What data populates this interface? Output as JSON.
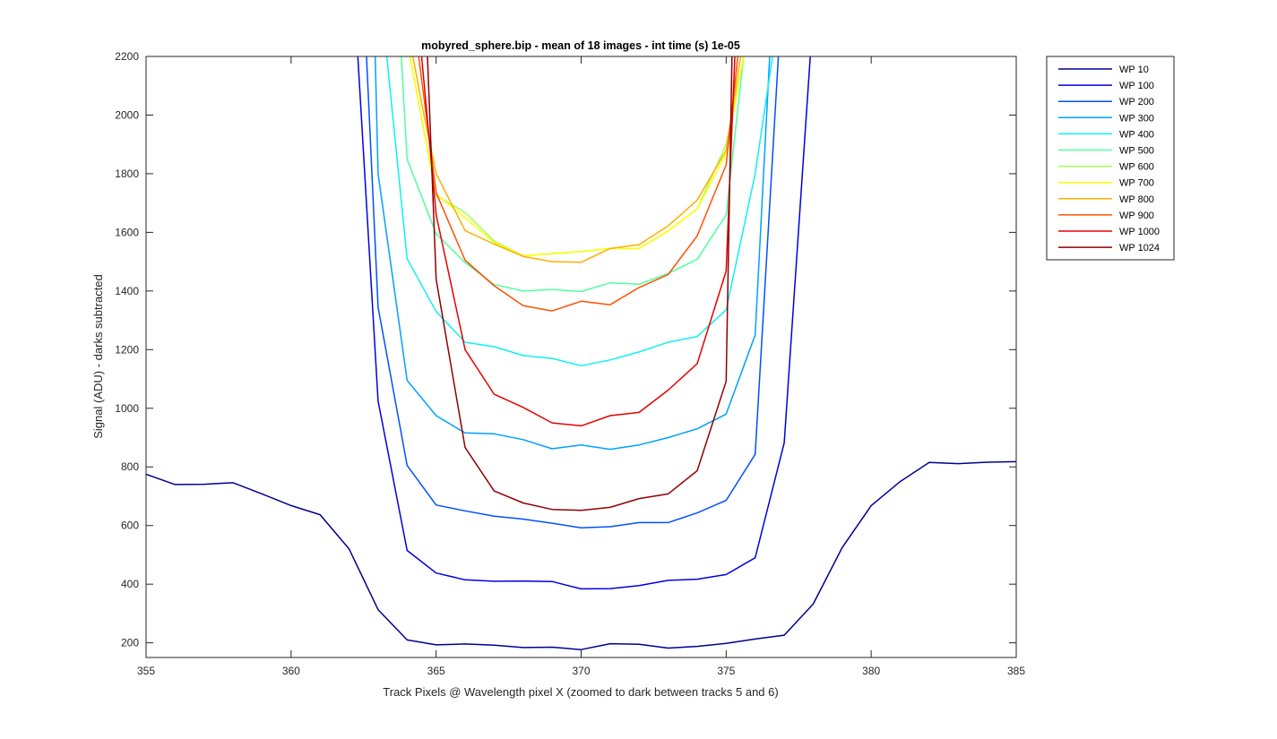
{
  "chart_data": {
    "type": "line",
    "title": "mobyred_sphere.bip - mean of 18 images - int time (s) 1e-05",
    "xlabel": "Track Pixels @ Wavelength pixel X  (zoomed to dark between tracks 5 and 6)",
    "ylabel": "Signal (ADU) - darks subtracted",
    "xlim": [
      355,
      385
    ],
    "ylim": [
      150,
      2200
    ],
    "xticks": [
      355,
      360,
      365,
      370,
      375,
      380,
      385
    ],
    "yticks": [
      200,
      400,
      600,
      800,
      1000,
      1200,
      1400,
      1600,
      1800,
      2000,
      2200
    ],
    "grid": false,
    "legend_position": "outside-top-right",
    "series": [
      {
        "name": "WP 10",
        "color": "#00008f",
        "x": [
          355,
          356,
          357,
          358,
          359,
          360,
          361,
          362,
          363,
          364,
          365,
          366,
          367,
          368,
          369,
          370,
          371,
          372,
          373,
          374,
          375,
          376,
          377,
          378,
          379,
          380,
          381,
          382,
          383,
          384,
          385
        ],
        "y": [
          775,
          740,
          741,
          746,
          708,
          668,
          637,
          520,
          313,
          210,
          193,
          196,
          192,
          184,
          185,
          177,
          197,
          195,
          182,
          188,
          198,
          213,
          226,
          332,
          525,
          668,
          750,
          815,
          811,
          816,
          818
        ]
      },
      {
        "name": "WP 100",
        "color": "#0000df",
        "x": [
          362.3,
          363,
          364,
          365,
          366,
          367,
          368,
          369,
          370,
          371,
          372,
          373,
          374,
          375,
          376,
          377,
          377.9
        ],
        "y": [
          2200,
          1025,
          515,
          438,
          415,
          410,
          411,
          409,
          384,
          385,
          395,
          413,
          417,
          433,
          490,
          882,
          2200
        ]
      },
      {
        "name": "WP 200",
        "color": "#0050ff",
        "x": [
          362.6,
          363,
          364,
          365,
          366,
          367,
          368,
          369,
          370,
          371,
          372,
          373,
          374,
          375,
          376,
          376.8
        ],
        "y": [
          2200,
          1345,
          805,
          670,
          650,
          632,
          622,
          608,
          592,
          596,
          610,
          610,
          643,
          686,
          843,
          2200
        ]
      },
      {
        "name": "WP 300",
        "color": "#00a0ff",
        "x": [
          362.9,
          363,
          364,
          365,
          366,
          367,
          368,
          369,
          370,
          371,
          372,
          373,
          374,
          375,
          376,
          376.5
        ],
        "y": [
          2200,
          1800,
          1095,
          975,
          916,
          913,
          893,
          862,
          875,
          860,
          875,
          900,
          930,
          980,
          1250,
          2200
        ]
      },
      {
        "name": "WP 400",
        "color": "#0ff0f0",
        "x": [
          363.3,
          364,
          365,
          366,
          367,
          368,
          369,
          370,
          371,
          372,
          373,
          374,
          375,
          376,
          376.6
        ],
        "y": [
          2200,
          1510,
          1330,
          1225,
          1210,
          1180,
          1170,
          1145,
          1165,
          1192,
          1225,
          1245,
          1335,
          1800,
          2200
        ]
      },
      {
        "name": "WP 500",
        "color": "#50ff9f",
        "x": [
          363.8,
          364,
          365,
          366,
          367,
          368,
          369,
          370,
          371,
          372,
          373,
          374,
          375,
          375.6
        ],
        "y": [
          2200,
          1850,
          1595,
          1497,
          1422,
          1400,
          1405,
          1398,
          1428,
          1423,
          1460,
          1508,
          1660,
          2200
        ]
      },
      {
        "name": "WP 600",
        "color": "#a0ff50",
        "x": [
          364.1,
          365,
          366,
          367,
          368,
          369,
          370,
          371,
          372,
          373,
          374,
          375,
          375.6
        ],
        "y": [
          2200,
          1725,
          1668,
          1570,
          1520,
          1527,
          1535,
          1545,
          1545,
          1605,
          1680,
          1900,
          2200
        ]
      },
      {
        "name": "WP 700",
        "color": "#ffff00",
        "x": [
          364.1,
          365,
          366,
          367,
          368,
          369,
          370,
          371,
          372,
          373,
          374,
          375,
          375.6
        ],
        "y": [
          2200,
          1730,
          1650,
          1565,
          1520,
          1528,
          1535,
          1545,
          1545,
          1605,
          1680,
          1870,
          2200
        ]
      },
      {
        "name": "WP 800",
        "color": "#ffae00",
        "x": [
          364.2,
          364.5,
          365,
          366,
          367,
          368,
          369,
          370,
          371,
          372,
          373,
          374,
          375,
          375.5
        ],
        "y": [
          2200,
          2040,
          1800,
          1606,
          1560,
          1518,
          1500,
          1498,
          1545,
          1558,
          1622,
          1710,
          1880,
          2200
        ]
      },
      {
        "name": "WP 900",
        "color": "#ff5000",
        "x": [
          364.4,
          365,
          366,
          367,
          368,
          369,
          370,
          371,
          372,
          373,
          374,
          375,
          375.4
        ],
        "y": [
          2200,
          1735,
          1505,
          1418,
          1350,
          1332,
          1365,
          1353,
          1412,
          1456,
          1588,
          1830,
          2200
        ]
      },
      {
        "name": "WP 1000",
        "color": "#e60000",
        "x": [
          364.5,
          365,
          366,
          367,
          368,
          369,
          370,
          371,
          372,
          373,
          374,
          375,
          375.3
        ],
        "y": [
          2200,
          1660,
          1200,
          1048,
          1003,
          950,
          940,
          975,
          986,
          1062,
          1152,
          1468,
          2200
        ]
      },
      {
        "name": "WP 1024",
        "color": "#8f0000",
        "x": [
          364.7,
          365,
          366,
          367,
          368,
          369,
          370,
          371,
          372,
          373,
          374,
          375,
          375.2
        ],
        "y": [
          2200,
          1440,
          866,
          718,
          677,
          655,
          652,
          662,
          692,
          708,
          787,
          1092,
          2200
        ]
      }
    ]
  }
}
